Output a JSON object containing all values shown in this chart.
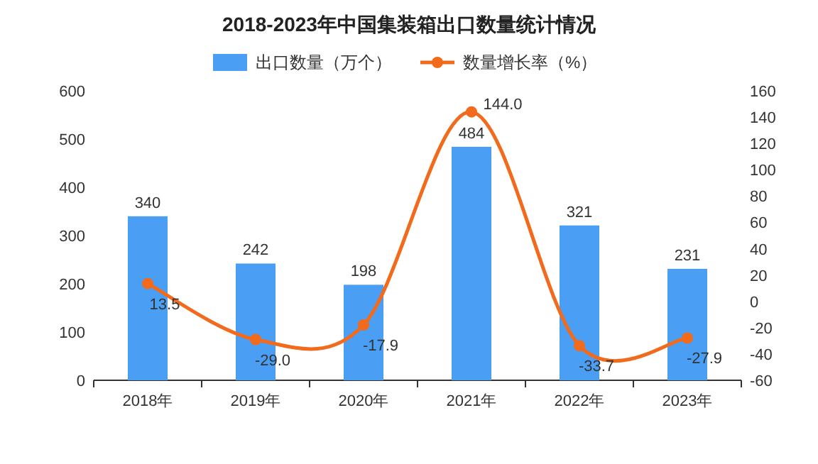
{
  "chart_data": {
    "type": "bar",
    "title": "2018-2023年中国集装箱出口数量统计情况",
    "categories": [
      "2018年",
      "2019年",
      "2020年",
      "2021年",
      "2022年",
      "2023年"
    ],
    "series": [
      {
        "name": "出口数量（万个）",
        "color": "#4a9ff5",
        "values": [
          340,
          242,
          198,
          484,
          321,
          231
        ]
      },
      {
        "name": "数量增长率（%）",
        "type": "line",
        "axis": "y2",
        "color": "#f26a1b",
        "values": [
          13.5,
          -29.0,
          -17.9,
          144.0,
          -33.7,
          -27.9
        ],
        "value_labels": [
          "13.5",
          "-29.0",
          "-17.9",
          "144.0",
          "-33.7",
          "-27.9"
        ]
      }
    ],
    "ylim": [
      0,
      600
    ],
    "yticks": [
      0,
      100,
      200,
      300,
      400,
      500,
      600
    ],
    "y2lim": [
      -60,
      160
    ],
    "y2ticks": [
      -60,
      -40,
      -20,
      0,
      20,
      40,
      60,
      80,
      100,
      120,
      140,
      160
    ],
    "data_labels": true,
    "legend": "top",
    "marker": "circle",
    "line_style": "solid"
  }
}
